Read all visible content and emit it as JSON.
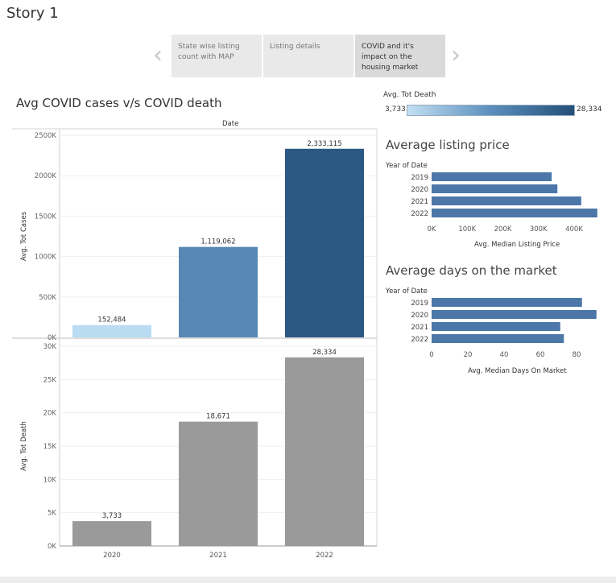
{
  "story": {
    "title": "Story 1",
    "tabs": [
      {
        "label": "State wise listing count with MAP"
      },
      {
        "label": "Listing details"
      },
      {
        "label": "COVID and it's impact on the housing market"
      }
    ],
    "prev_icon": "chevron-left-icon",
    "next_icon": "chevron-right-icon"
  },
  "sheet": {
    "title": "Avg COVID cases v/s COVID death",
    "column_header": "Date"
  },
  "legend": {
    "title": "Avg. Tot Death",
    "min_label": "3,733",
    "max_label": "28,334",
    "colors": [
      "#c2dff3",
      "#5b8fbd",
      "#234f78"
    ]
  },
  "listing_price": {
    "title": "Average listing price",
    "row_header": "Year of Date",
    "axis_title": "Avg. Median Listing Price"
  },
  "days_market": {
    "title": "Average days on the market",
    "row_header": "Year of Date",
    "axis_title": "Avg. Median Days On Market"
  },
  "chart_data": [
    {
      "type": "bar",
      "categories": [
        "2020",
        "2021",
        "2022"
      ],
      "values": [
        152484,
        1119062,
        2333115
      ],
      "value_labels": [
        "152,484",
        "1,119,062",
        "2,333,115"
      ],
      "xlabel": "Date",
      "ylabel": "Avg. Tot Cases",
      "ylim": [
        0,
        2500000
      ],
      "y_ticks": [
        0,
        500000,
        1000000,
        1500000,
        2000000,
        2500000
      ],
      "y_tick_labels": [
        "0K",
        "500K",
        "1000K",
        "1500K",
        "2000K",
        "2500K"
      ],
      "bar_colors": [
        "#b9dcf2",
        "#5687b5",
        "#2b5884"
      ],
      "color_by": "Avg. Tot Death",
      "grid": true
    },
    {
      "type": "bar",
      "categories": [
        "2020",
        "2021",
        "2022"
      ],
      "values": [
        3733,
        18671,
        28334
      ],
      "value_labels": [
        "3,733",
        "18,671",
        "28,334"
      ],
      "ylabel": "Avg. Tot Death",
      "ylim": [
        0,
        30000
      ],
      "y_ticks": [
        0,
        5000,
        10000,
        15000,
        20000,
        25000,
        30000
      ],
      "y_tick_labels": [
        "0K",
        "5K",
        "10K",
        "15K",
        "20K",
        "25K",
        "30K"
      ],
      "color": "#9a9a9a",
      "grid": true
    },
    {
      "type": "bar",
      "orientation": "horizontal",
      "title": "Average listing price",
      "categories": [
        "2019",
        "2020",
        "2021",
        "2022"
      ],
      "values": [
        337000,
        353000,
        420000,
        465000
      ],
      "xlabel": "Avg. Median Listing Price",
      "ylabel": "Year of Date",
      "xlim": [
        0,
        470000
      ],
      "x_ticks": [
        0,
        100000,
        200000,
        300000,
        400000
      ],
      "x_tick_labels": [
        "0K",
        "100K",
        "200K",
        "300K",
        "400K"
      ],
      "color": "#4c77a8"
    },
    {
      "type": "bar",
      "orientation": "horizontal",
      "title": "Average days on the market",
      "categories": [
        "2019",
        "2020",
        "2021",
        "2022"
      ],
      "values": [
        83,
        91,
        71,
        73
      ],
      "xlabel": "Avg. Median Days On Market",
      "ylabel": "Year of Date",
      "xlim": [
        0,
        92
      ],
      "x_ticks": [
        0,
        20,
        40,
        60,
        80
      ],
      "x_tick_labels": [
        "0",
        "20",
        "40",
        "60",
        "80"
      ],
      "color": "#4c77a8"
    }
  ]
}
